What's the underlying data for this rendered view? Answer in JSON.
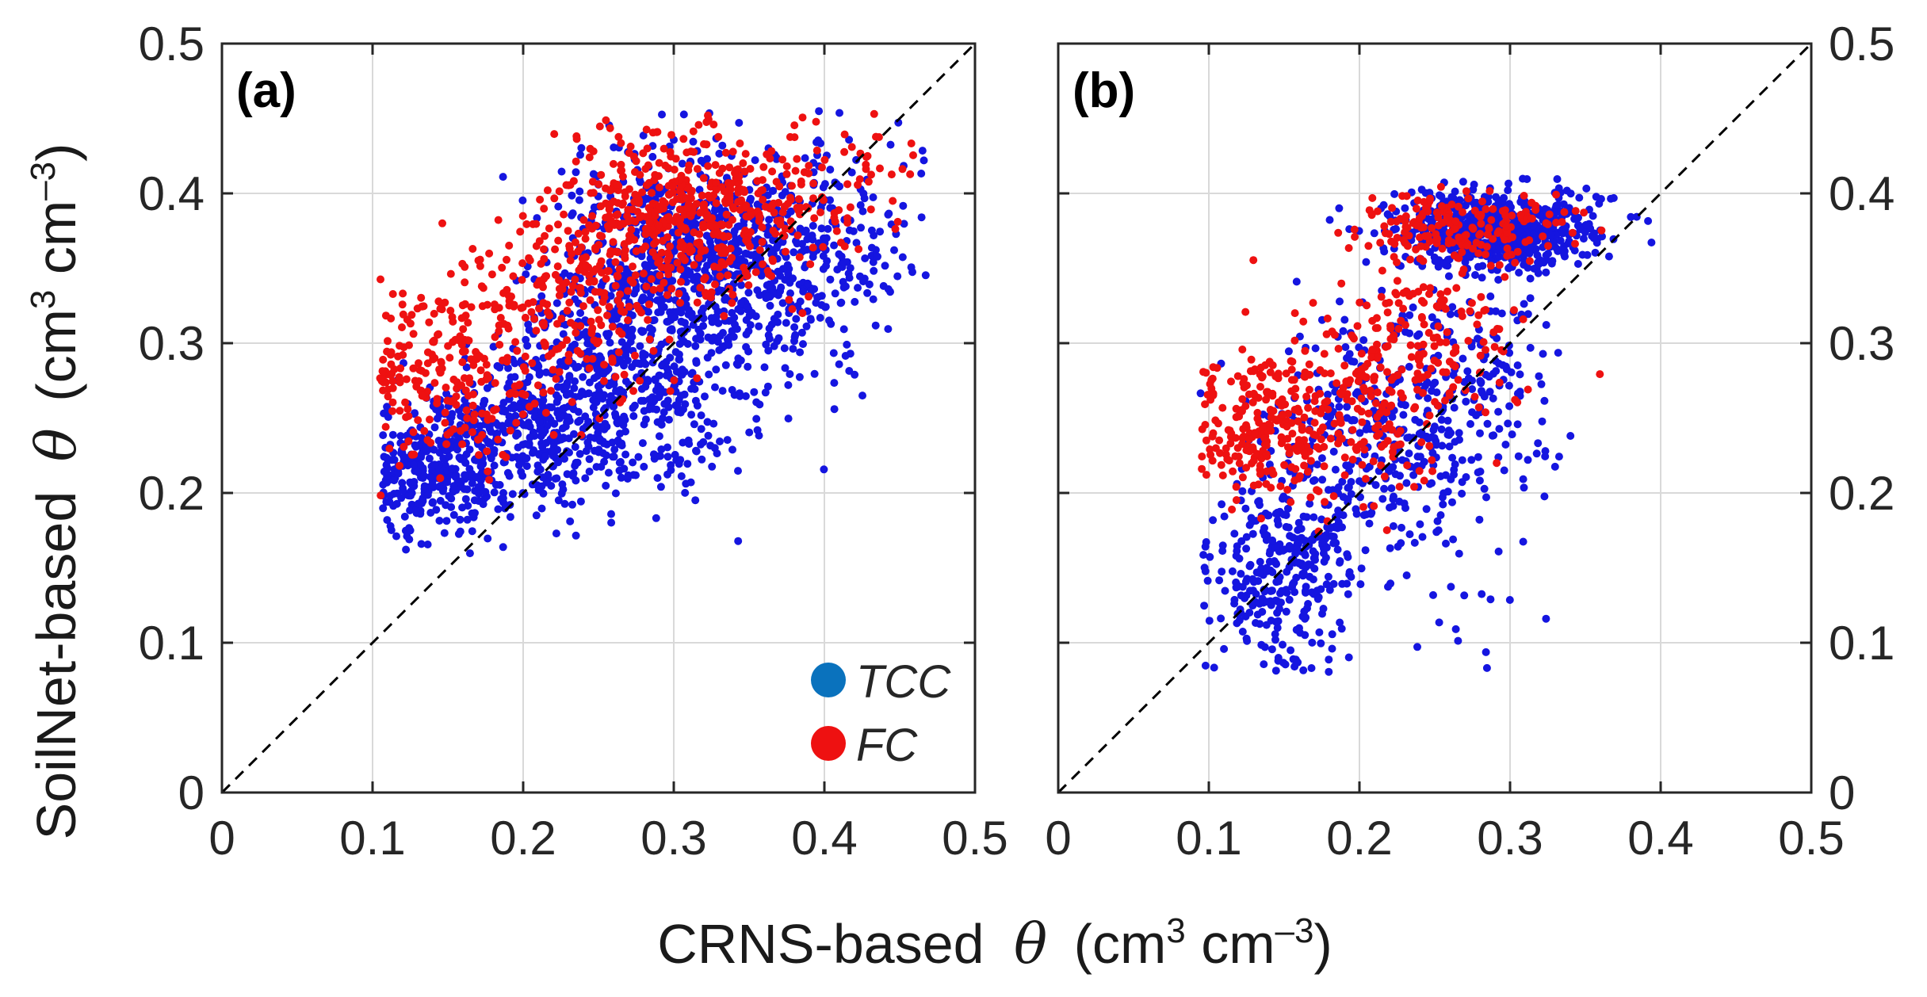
{
  "figure": {
    "xlabel_prefix": "CRNS-based",
    "ylabel_prefix": "SoilNet-based",
    "theta_symbol": "θ",
    "unit_open": "(cm",
    "unit_exp1": "3",
    "unit_mid": " cm",
    "unit_exp2": "–3",
    "unit_close": ")"
  },
  "chart_data": [
    {
      "type": "scatter",
      "panel_label": "(a)",
      "xlim": [
        0,
        0.5
      ],
      "ylim": [
        0,
        0.5
      ],
      "xticks": [
        "0",
        "0.1",
        "0.2",
        "0.3",
        "0.4",
        "0.5"
      ],
      "yticks": [
        "0",
        "0.1",
        "0.2",
        "0.3",
        "0.4",
        "0.5"
      ],
      "grid": true,
      "one_to_one_line": true,
      "legend_position": "bottom-right",
      "series": [
        {
          "name": "TCC",
          "color": "#1515e0",
          "legend_color": "#0a72bd",
          "clusters": [
            {
              "cx": 0.14,
              "cy": 0.215,
              "sx": 0.025,
              "sy": 0.02,
              "n": 320,
              "xmin": 0.105
            },
            {
              "cx": 0.2,
              "cy": 0.24,
              "sx": 0.035,
              "sy": 0.025,
              "n": 360
            },
            {
              "cx": 0.27,
              "cy": 0.28,
              "sx": 0.04,
              "sy": 0.04,
              "n": 520
            },
            {
              "cx": 0.31,
              "cy": 0.36,
              "sx": 0.04,
              "sy": 0.035,
              "n": 620
            },
            {
              "cx": 0.38,
              "cy": 0.35,
              "sx": 0.035,
              "sy": 0.04,
              "n": 260
            },
            {
              "cx": 0.43,
              "cy": 0.38,
              "sx": 0.02,
              "sy": 0.04,
              "n": 30
            }
          ]
        },
        {
          "name": "FC",
          "color": "#ee1111",
          "legend_color": "#ee1111",
          "clusters": [
            {
              "cx": 0.15,
              "cy": 0.28,
              "sx": 0.03,
              "sy": 0.03,
              "n": 210,
              "xmin": 0.105
            },
            {
              "cx": 0.22,
              "cy": 0.32,
              "sx": 0.035,
              "sy": 0.035,
              "n": 200
            },
            {
              "cx": 0.29,
              "cy": 0.38,
              "sx": 0.04,
              "sy": 0.03,
              "n": 380
            },
            {
              "cx": 0.35,
              "cy": 0.4,
              "sx": 0.04,
              "sy": 0.025,
              "n": 170
            },
            {
              "cx": 0.43,
              "cy": 0.41,
              "sx": 0.02,
              "sy": 0.02,
              "n": 25
            }
          ]
        }
      ],
      "seed": 17
    },
    {
      "type": "scatter",
      "panel_label": "(b)",
      "xlim": [
        0,
        0.5
      ],
      "ylim": [
        0,
        0.5
      ],
      "xticks": [
        "0",
        "0.1",
        "0.2",
        "0.3",
        "0.4",
        "0.5"
      ],
      "yticks": [
        "0",
        "0.1",
        "0.2",
        "0.3",
        "0.4",
        "0.5"
      ],
      "grid": true,
      "one_to_one_line": true,
      "series": [
        {
          "name": "TCC",
          "color": "#1515e0",
          "clusters": [
            {
              "cx": 0.29,
              "cy": 0.375,
              "sx": 0.035,
              "sy": 0.013,
              "n": 650
            },
            {
              "cx": 0.15,
              "cy": 0.15,
              "sx": 0.025,
              "sy": 0.03,
              "n": 300,
              "xmin": 0.095
            },
            {
              "cx": 0.21,
              "cy": 0.24,
              "sx": 0.04,
              "sy": 0.045,
              "n": 320
            },
            {
              "cx": 0.27,
              "cy": 0.27,
              "sx": 0.035,
              "sy": 0.04,
              "n": 180
            },
            {
              "cx": 0.27,
              "cy": 0.12,
              "sx": 0.03,
              "sy": 0.025,
              "n": 12
            }
          ]
        },
        {
          "name": "FC",
          "color": "#ee1111",
          "clusters": [
            {
              "cx": 0.13,
              "cy": 0.245,
              "sx": 0.022,
              "sy": 0.025,
              "n": 160,
              "xmin": 0.095
            },
            {
              "cx": 0.18,
              "cy": 0.25,
              "sx": 0.03,
              "sy": 0.03,
              "n": 200
            },
            {
              "cx": 0.24,
              "cy": 0.3,
              "sx": 0.035,
              "sy": 0.035,
              "n": 170
            },
            {
              "cx": 0.27,
              "cy": 0.38,
              "sx": 0.035,
              "sy": 0.012,
              "n": 180
            }
          ]
        }
      ],
      "seed": 91
    }
  ]
}
